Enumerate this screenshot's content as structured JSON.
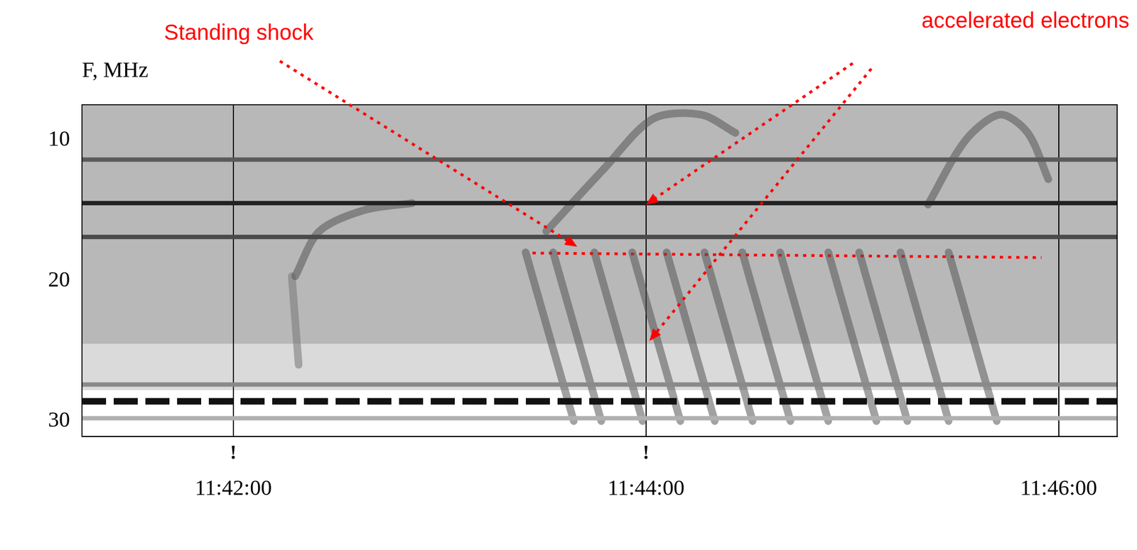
{
  "chart_data": {
    "type": "spectrogram",
    "y_label": "F, MHz",
    "xlim": [
      42076,
      42377
    ],
    "xticks": [
      {
        "value": 42120,
        "label": "11:42:00"
      },
      {
        "value": 42240,
        "label": "11:44:00"
      },
      {
        "value": 42360,
        "label": "11:46:00"
      }
    ],
    "ylim": [
      31.1,
      7.5
    ],
    "yticks": [
      10,
      20,
      30
    ],
    "grid": "x",
    "regions": [
      {
        "y": [
          7.5,
          24.5
        ],
        "color": "#b8b8b8"
      },
      {
        "y": [
          24.5,
          27.8
        ],
        "color": "#dadada"
      }
    ],
    "lines": [
      {
        "y": 11.4,
        "color": "#5a5a5a"
      },
      {
        "y": 14.5,
        "color": "#222222"
      },
      {
        "y": 16.9,
        "color": "#4a4a4a"
      },
      {
        "y": 27.4,
        "color": "#8a8a8a"
      },
      {
        "y": 28.6,
        "color": "#111111",
        "line_style": "dashed"
      },
      {
        "y": 29.8,
        "color": "#b0b0b0"
      }
    ],
    "bursts": [
      {
        "x": [
          42138,
          42145,
          42158,
          42172
        ],
        "y": [
          19.7,
          16.5,
          15,
          14.5
        ],
        "color": "#555555"
      },
      {
        "x": [
          42137,
          42139
        ],
        "y": [
          19.7,
          26
        ],
        "color": "#777777"
      },
      {
        "x": [
          42205,
          42219
        ],
        "y": [
          18,
          30
        ],
        "color": "#555555"
      },
      {
        "x": [
          42213,
          42227
        ],
        "y": [
          18,
          30
        ],
        "color": "#555555"
      },
      {
        "x": [
          42225,
          42239
        ],
        "y": [
          18,
          30
        ],
        "color": "#555555"
      },
      {
        "x": [
          42236,
          42250
        ],
        "y": [
          18,
          30
        ],
        "color": "#555555"
      },
      {
        "x": [
          42246,
          42260
        ],
        "y": [
          18,
          30
        ],
        "color": "#555555"
      },
      {
        "x": [
          42257,
          42271
        ],
        "y": [
          18,
          30
        ],
        "color": "#555555"
      },
      {
        "x": [
          42268,
          42282
        ],
        "y": [
          18,
          30
        ],
        "color": "#555555"
      },
      {
        "x": [
          42279,
          42293
        ],
        "y": [
          18,
          30
        ],
        "color": "#555555"
      },
      {
        "x": [
          42293,
          42307
        ],
        "y": [
          18,
          30
        ],
        "color": "#555555"
      },
      {
        "x": [
          42302,
          42316
        ],
        "y": [
          18,
          30
        ],
        "color": "#555555"
      },
      {
        "x": [
          42314,
          42328
        ],
        "y": [
          18,
          30
        ],
        "color": "#555555"
      },
      {
        "x": [
          42328,
          42342
        ],
        "y": [
          18,
          30
        ],
        "color": "#555555"
      },
      {
        "x": [
          42211,
          42228,
          42242,
          42256,
          42266
        ],
        "y": [
          16.5,
          12,
          8.5,
          8.2,
          9.5
        ],
        "color": "#555555"
      },
      {
        "x": [
          42322,
          42333,
          42343,
          42351,
          42357
        ],
        "y": [
          14.6,
          10,
          8.2,
          9.5,
          12.8
        ],
        "color": "#555555"
      }
    ],
    "shock_line": {
      "x": [
        42207,
        42355
      ],
      "y": [
        18.05,
        18.37
      ],
      "color": "#ff0000",
      "line_style": "dotted"
    },
    "annotations": [
      {
        "text": "Standing shock",
        "color": "#ff0000",
        "targets": [
          [
            42220,
            17.6
          ]
        ]
      },
      {
        "text": "accelerated electrons",
        "color": "#ff0000",
        "targets": [
          [
            42240,
            14.6
          ],
          [
            42241,
            24.3
          ]
        ]
      }
    ],
    "markers": [
      {
        "x": 42120,
        "text": "!"
      },
      {
        "x": 42240,
        "text": "!"
      }
    ]
  }
}
